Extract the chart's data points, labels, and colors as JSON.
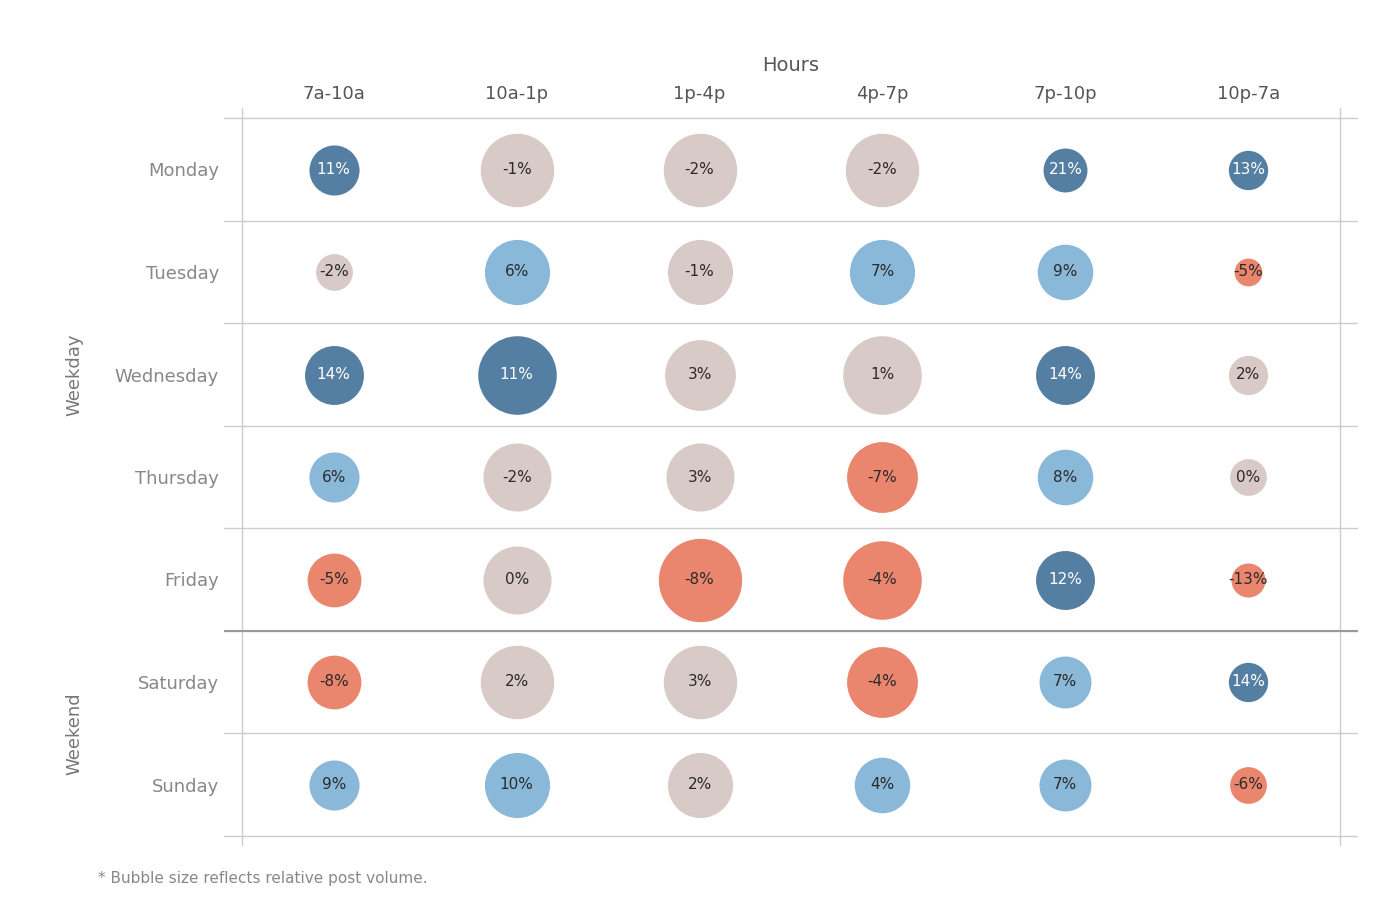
{
  "xlabel": "Hours",
  "hours": [
    "7a-10a",
    "10a-1p",
    "1p-4p",
    "4p-7p",
    "7p-10p",
    "10p-7a"
  ],
  "days": [
    "Monday",
    "Tuesday",
    "Wednesday",
    "Thursday",
    "Friday",
    "Saturday",
    "Sunday"
  ],
  "weekday_label": "Weekday",
  "weekend_label": "Weekend",
  "footnote": "* Bubble size reflects relative post volume.",
  "values": [
    [
      11,
      -1,
      -2,
      -2,
      21,
      13
    ],
    [
      -2,
      6,
      -1,
      7,
      9,
      -5
    ],
    [
      14,
      11,
      3,
      1,
      14,
      2
    ],
    [
      6,
      -2,
      3,
      -7,
      8,
      0
    ],
    [
      -5,
      0,
      -8,
      -4,
      12,
      -13
    ],
    [
      -8,
      2,
      3,
      -4,
      7,
      14
    ],
    [
      9,
      10,
      2,
      4,
      7,
      -6
    ]
  ],
  "sizes": [
    [
      1300,
      2800,
      2800,
      2800,
      1000,
      800
    ],
    [
      700,
      2200,
      2200,
      2200,
      1600,
      400
    ],
    [
      1800,
      3200,
      2600,
      3200,
      1800,
      800
    ],
    [
      1300,
      2400,
      2400,
      2600,
      1600,
      700
    ],
    [
      1500,
      2400,
      3600,
      3200,
      1800,
      600
    ],
    [
      1500,
      2800,
      2800,
      2600,
      1400,
      800
    ],
    [
      1300,
      2200,
      2200,
      1600,
      1400,
      700
    ]
  ],
  "color_positive_light": "#7aaed3",
  "color_positive_dark": "#3d6d95",
  "color_negative": "#e8755a",
  "color_neutral": "#d3c3be",
  "bg_color": "#ffffff",
  "text_color_dark": "#2a2a2a",
  "text_color_light": "#ffffff",
  "grid_line_color": "#cccccc",
  "weekday_divider_color": "#999999",
  "row_label_color": "#888888",
  "col_label_color": "#555555",
  "side_label_color": "#777777",
  "colors_per_cell": [
    [
      "dark_blue",
      "neutral",
      "neutral",
      "neutral",
      "dark_blue",
      "dark_blue"
    ],
    [
      "neutral",
      "light_blue",
      "neutral",
      "light_blue",
      "light_blue",
      "red"
    ],
    [
      "dark_blue",
      "dark_blue",
      "neutral",
      "neutral",
      "dark_blue",
      "neutral"
    ],
    [
      "light_blue",
      "neutral",
      "neutral",
      "red",
      "light_blue",
      "neutral"
    ],
    [
      "red",
      "neutral",
      "red",
      "red",
      "dark_blue",
      "red"
    ],
    [
      "red",
      "neutral",
      "neutral",
      "red",
      "light_blue",
      "dark_blue"
    ],
    [
      "light_blue",
      "light_blue",
      "neutral",
      "light_blue",
      "light_blue",
      "red"
    ]
  ]
}
